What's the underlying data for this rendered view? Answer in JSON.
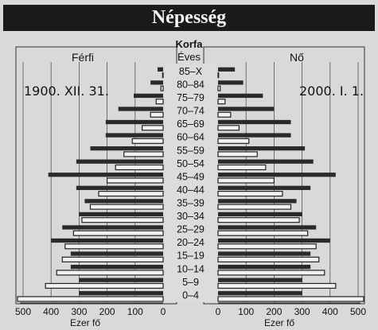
{
  "banner": {
    "title": "Népesség"
  },
  "chart_data": {
    "type": "bar",
    "orientation": "horizontal",
    "title": "Korfa",
    "subtitle": "Éves",
    "age_groups": [
      "85–X",
      "80–84",
      "75–79",
      "70–74",
      "65–69",
      "60–64",
      "55–59",
      "50–54",
      "45–49",
      "40–44",
      "35–39",
      "30–34",
      "25–29",
      "20–24",
      "15–19",
      "10–14",
      "5–9",
      "0–4"
    ],
    "left_panel": {
      "gender": "Férfi",
      "date": "1900. XII. 31."
    },
    "right_panel": {
      "gender": "Nő",
      "date": "2000. I. 1."
    },
    "series": [
      {
        "name": "1900 Férfi",
        "values": [
          2,
          8,
          25,
          45,
          75,
          110,
          140,
          170,
          200,
          230,
          260,
          290,
          320,
          350,
          360,
          380,
          420,
          520
        ]
      },
      {
        "name": "2000 Férfi",
        "values": [
          20,
          45,
          105,
          160,
          205,
          205,
          260,
          310,
          410,
          310,
          280,
          300,
          360,
          400,
          330,
          330,
          300,
          300
        ]
      },
      {
        "name": "1900 Nő",
        "values": [
          2,
          8,
          25,
          45,
          75,
          110,
          140,
          170,
          200,
          230,
          260,
          290,
          320,
          350,
          360,
          380,
          420,
          520
        ]
      },
      {
        "name": "2000 Nő",
        "values": [
          60,
          90,
          160,
          200,
          260,
          260,
          310,
          340,
          420,
          330,
          280,
          300,
          350,
          400,
          330,
          330,
          300,
          300
        ]
      }
    ],
    "x_ticks_left": [
      "500",
      "400",
      "300",
      "200",
      "100",
      "0"
    ],
    "x_ticks_right": [
      "0",
      "100",
      "200",
      "300",
      "400",
      "500"
    ],
    "xlabel_left": "Ezer fő",
    "xlabel_right": "Ezer fő",
    "xlim": [
      0,
      500
    ],
    "grid": true
  }
}
